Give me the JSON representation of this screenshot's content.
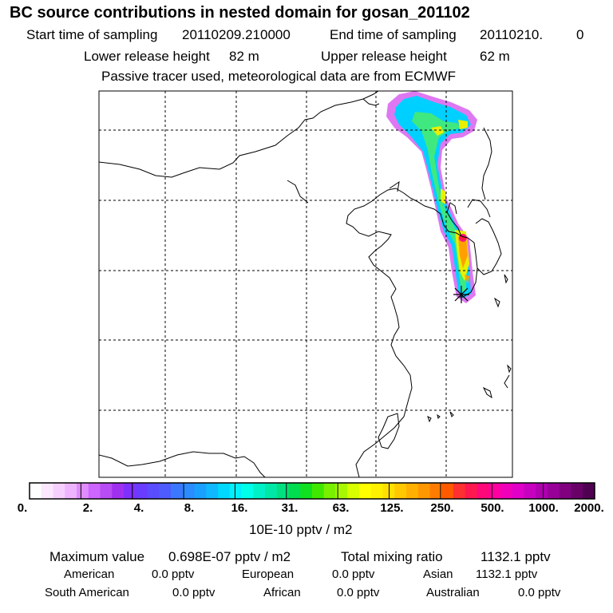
{
  "header": {
    "title": "BC  source contributions in nested domain for gosan_201102",
    "start_label": "Start time of sampling",
    "start_value": "20110209.210000",
    "end_label": "End time of sampling",
    "end_value": "20110210.",
    "end_value2": "0",
    "lower_label": "Lower release height",
    "lower_value": "82 m",
    "upper_label": "Upper release height",
    "upper_value": "62 m",
    "note": "Passive tracer used, meteorological data are from ECMWF"
  },
  "colorbar": {
    "ticks": [
      "0.",
      "2.",
      "4.",
      "8.",
      "16.",
      "31.",
      "63.",
      "125.",
      "250.",
      "500.",
      "1000.",
      "2000."
    ],
    "colors": [
      "#ffffff",
      "#fbe8ff",
      "#f5d0ff",
      "#eeb4ff",
      "#e08cff",
      "#cc66ff",
      "#b84cf5",
      "#a030f0",
      "#7f30ff",
      "#6a3cff",
      "#5a4cff",
      "#4c5cff",
      "#3c78ff",
      "#2a8cff",
      "#1aa0ff",
      "#10b8ff",
      "#00d8ff",
      "#00f0ff",
      "#00ffe8",
      "#00f0c8",
      "#00e8a8",
      "#00e080",
      "#00dc50",
      "#10e020",
      "#40e800",
      "#78f000",
      "#a8f800",
      "#d8ff00",
      "#ffff00",
      "#fff000",
      "#ffe000",
      "#ffc800",
      "#ffb000",
      "#ff9800",
      "#ff7c00",
      "#ff5a00",
      "#ff3030",
      "#ff1850",
      "#ff0878",
      "#ff00a0",
      "#f000b8",
      "#e000c8",
      "#c800c0",
      "#b000b0",
      "#980098",
      "#800080",
      "#680068",
      "#500050"
    ],
    "unit": "10E-10 pptv / m2"
  },
  "summary": {
    "max_label": "Maximum value",
    "max_value": "0.698E-07 pptv / m2",
    "total_label": "Total mixing ratio",
    "total_value": "1132.1 pptv"
  },
  "regions": {
    "american_label": "American",
    "american_value": "0.0 pptv",
    "european_label": "European",
    "european_value": "0.0 pptv",
    "asian_label": "Asian",
    "asian_value": "1132.1 pptv",
    "south_american_label": "South American",
    "south_american_value": "0.0 pptv",
    "african_label": "African",
    "african_value": "0.0 pptv",
    "australian_label": "Australian",
    "australian_value": "0.0 pptv"
  }
}
